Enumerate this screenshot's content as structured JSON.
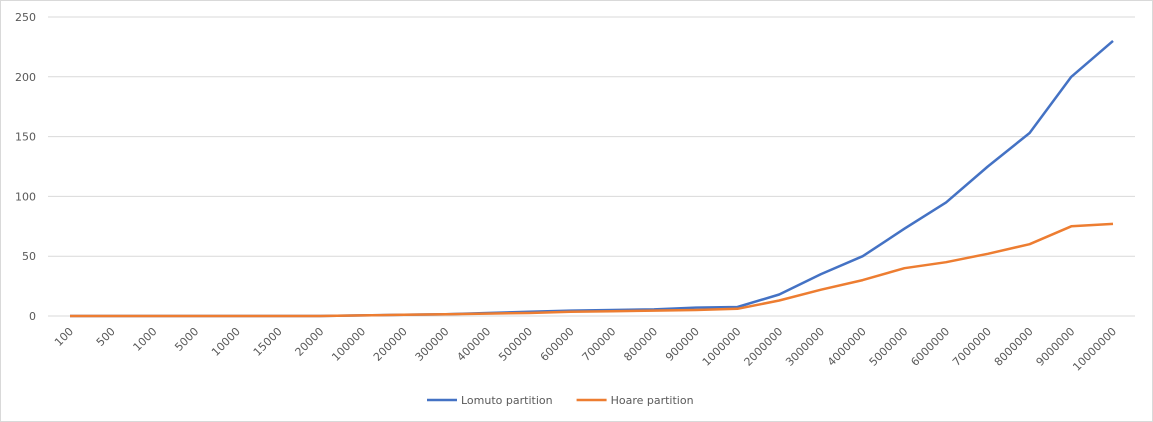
{
  "chart_data": {
    "type": "line",
    "categories": [
      "100",
      "500",
      "1000",
      "5000",
      "10000",
      "15000",
      "20000",
      "100000",
      "200000",
      "300000",
      "400000",
      "500000",
      "600000",
      "700000",
      "800000",
      "900000",
      "1000000",
      "2000000",
      "3000000",
      "4000000",
      "5000000",
      "6000000",
      "7000000",
      "8000000",
      "9000000",
      "10000000"
    ],
    "series": [
      {
        "name": "Lomuto partition",
        "color": "#4472c4",
        "values": [
          0,
          0,
          0,
          0,
          0,
          0,
          0,
          0.5,
          1,
          1.5,
          2.5,
          3.5,
          4.5,
          5,
          5.5,
          7,
          7.5,
          18,
          35,
          50,
          73,
          95,
          125,
          153,
          200,
          230
        ]
      },
      {
        "name": "Hoare partition",
        "color": "#ed7d31",
        "values": [
          0,
          0,
          0,
          0,
          0,
          0,
          0,
          0.5,
          1,
          1.5,
          2,
          2.5,
          3.5,
          4,
          4.5,
          5,
          6,
          13,
          22,
          30,
          40,
          45,
          52,
          60,
          75,
          77
        ]
      }
    ],
    "ylim": [
      0,
      250
    ],
    "yticks": [
      0,
      50,
      100,
      150,
      200,
      250
    ],
    "grid": true,
    "legend": "bottom"
  }
}
